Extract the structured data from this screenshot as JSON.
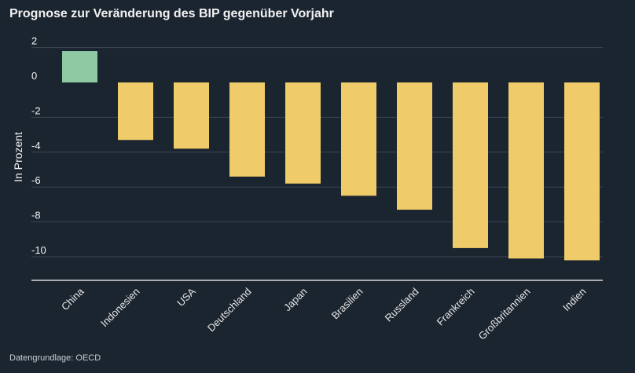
{
  "header": {
    "title": "Prognose zur Veränderung des BIP gegenüber Vorjahr"
  },
  "footer": {
    "source": "Datengrundlage: OECD"
  },
  "colors": {
    "background": "#1b2530",
    "positive_bar": "#8fc9a4",
    "negative_bar": "#efcb6a",
    "gridline": "#3a4653",
    "baseline": "#d9d9d9"
  },
  "chart_data": {
    "type": "bar",
    "title": "Prognose zur Veränderung des BIP gegenüber Vorjahr",
    "xlabel": "",
    "ylabel": "In Prozent",
    "ylim": [
      -11.5,
      2.5
    ],
    "yticks": [
      2,
      0,
      -2,
      -4,
      -6,
      -8,
      -10
    ],
    "grid": true,
    "categories": [
      "China",
      "Indonesien",
      "USA",
      "Deutschland",
      "Japan",
      "Brasilien",
      "Russland",
      "Frankreich",
      "Großbritannien",
      "Indien"
    ],
    "values": [
      1.8,
      -3.3,
      -3.8,
      -5.4,
      -5.8,
      -6.5,
      -7.3,
      -9.5,
      -10.1,
      -10.2
    ]
  }
}
